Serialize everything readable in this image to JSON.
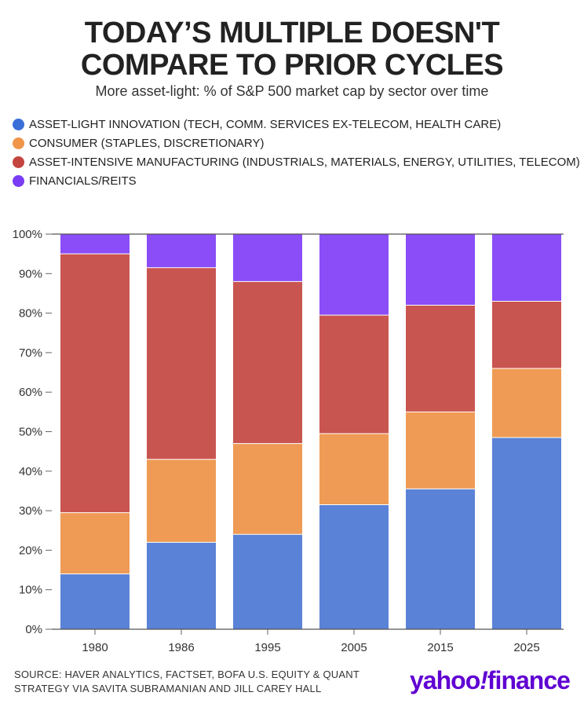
{
  "header": {
    "title_line1": "TODAY’S MULTIPLE DOESN'T",
    "title_line2": "COMPARE TO PRIOR CYCLES",
    "subtitle": "More asset-light: % of S&P 500 market cap by sector over time"
  },
  "footer": {
    "source_line1": "SOURCE: HAVER ANALYTICS, FACTSET, BOFA U.S. EQUITY & QUANT",
    "source_line2": "STRATEGY VIA SAVITA SUBRAMANIAN AND JILL CAREY HALL"
  },
  "brand": {
    "name": "yahoo",
    "bang": "!",
    "suffix": "finance",
    "color": "#6001d2"
  },
  "chart_data": {
    "type": "bar",
    "stacked": true,
    "categories": [
      "1980",
      "1986",
      "1995",
      "2005",
      "2015",
      "2025"
    ],
    "ylim": [
      0,
      100
    ],
    "yticks": [
      "0%",
      "10%",
      "20%",
      "30%",
      "40%",
      "50%",
      "60%",
      "70%",
      "80%",
      "90%",
      "100%"
    ],
    "grid": false,
    "legend_position": "top-left",
    "series": [
      {
        "name": "ASSET-LIGHT INNOVATION (TECH, COMM. SERVICES EX-TELECOM, HEALTH CARE)",
        "color": "#5a82d6",
        "values": [
          14,
          22,
          24,
          31.5,
          35.5,
          48.5
        ]
      },
      {
        "name": "CONSUMER (STAPLES, DISCRETIONARY)",
        "color": "#ef9b55",
        "values": [
          15.5,
          21,
          23,
          18,
          19.5,
          17.5
        ]
      },
      {
        "name": "ASSET-INTENSIVE MANUFACTURING (INDUSTRIALS, MATERIALS, ENERGY, UTILITIES, TELECOM)",
        "color": "#c95550",
        "values": [
          65.5,
          48.5,
          41,
          30,
          27,
          17
        ]
      },
      {
        "name": "FINANCIALS/REITS",
        "color": "#8a4df7",
        "values": [
          5,
          8.5,
          12,
          20.5,
          18,
          17
        ]
      }
    ],
    "legend_marker_colors": [
      "#3a6fd8",
      "#f0954a",
      "#c4453f",
      "#7a3cf5"
    ]
  }
}
